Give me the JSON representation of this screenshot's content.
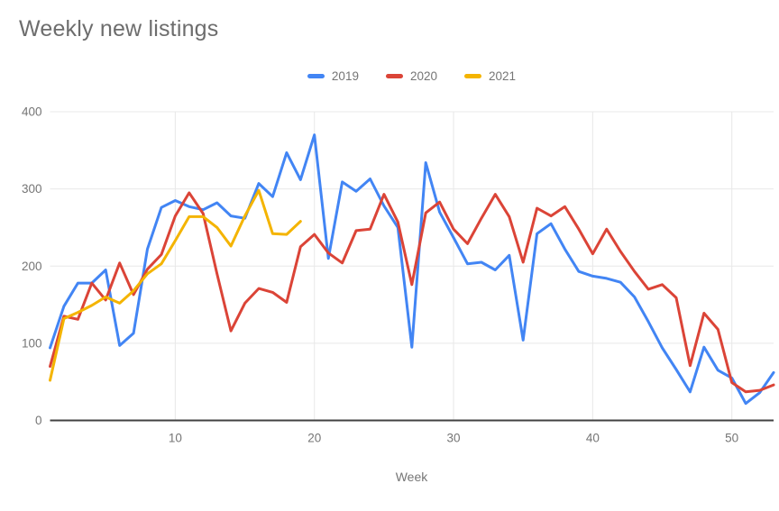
{
  "title": "Weekly new listings",
  "chart_data": {
    "type": "line",
    "xlabel": "Week",
    "ylabel": "",
    "x_range": [
      1,
      53
    ],
    "ylim": [
      0,
      400
    ],
    "x_ticks": [
      10,
      20,
      30,
      40,
      50
    ],
    "y_ticks": [
      0,
      100,
      200,
      300,
      400
    ],
    "grid": true,
    "legend_position": "top-center",
    "axis_color": "#424242",
    "gridline_color": "#e8e8e8",
    "tick_label_color": "#757575",
    "series": [
      {
        "name": "2019",
        "color": "#4285F4",
        "start_week": 1,
        "values": [
          94,
          148,
          178,
          178,
          195,
          97,
          113,
          222,
          276,
          285,
          277,
          273,
          282,
          265,
          262,
          307,
          290,
          347,
          312,
          370,
          210,
          309,
          297,
          313,
          278,
          250,
          95,
          334,
          270,
          237,
          203,
          205,
          195,
          214,
          104,
          242,
          255,
          222,
          193,
          187,
          184,
          179,
          160,
          128,
          94,
          66,
          37,
          95,
          65,
          55,
          22,
          36,
          62
        ]
      },
      {
        "name": "2020",
        "color": "#DB4437",
        "start_week": 1,
        "values": [
          70,
          135,
          131,
          178,
          156,
          204,
          163,
          196,
          215,
          265,
          295,
          268,
          190,
          116,
          152,
          171,
          166,
          153,
          225,
          241,
          217,
          204,
          246,
          248,
          293,
          257,
          176,
          269,
          283,
          248,
          229,
          262,
          293,
          264,
          205,
          275,
          265,
          277,
          248,
          216,
          248,
          219,
          193,
          170,
          176,
          159,
          71,
          139,
          118,
          49,
          37,
          39,
          46
        ]
      },
      {
        "name": "2021",
        "color": "#F4B400",
        "start_week": 1,
        "values": [
          52,
          132,
          140,
          149,
          160,
          152,
          168,
          190,
          203,
          233,
          264,
          264,
          250,
          226,
          265,
          298,
          242,
          241,
          258
        ]
      }
    ]
  }
}
